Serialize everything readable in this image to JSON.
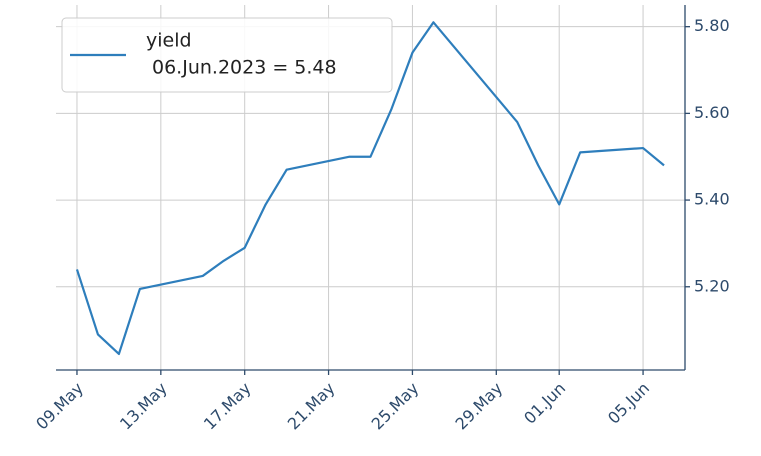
{
  "chart_data": {
    "type": "line",
    "x": [
      "2023-05-09",
      "2023-05-10",
      "2023-05-11",
      "2023-05-12",
      "2023-05-15",
      "2023-05-16",
      "2023-05-17",
      "2023-05-18",
      "2023-05-19",
      "2023-05-22",
      "2023-05-23",
      "2023-05-24",
      "2023-05-25",
      "2023-05-26",
      "2023-05-30",
      "2023-05-31",
      "2023-06-01",
      "2023-06-02",
      "2023-06-05",
      "2023-06-06"
    ],
    "series": [
      {
        "name": "yield",
        "color": "#2e7ebc",
        "values": [
          5.24,
          5.09,
          5.045,
          5.195,
          5.225,
          5.26,
          5.29,
          5.39,
          5.47,
          5.5,
          5.5,
          5.61,
          5.74,
          5.81,
          5.58,
          5.48,
          5.39,
          5.51,
          5.52,
          5.48
        ]
      }
    ],
    "annotation": "06.Jun.2023 = 5.48",
    "xlim": [
      "2023-05-08",
      "2023-06-07"
    ],
    "xticks": [
      {
        "value": "2023-05-09",
        "label": "09.May"
      },
      {
        "value": "2023-05-13",
        "label": "13.May"
      },
      {
        "value": "2023-05-17",
        "label": "17.May"
      },
      {
        "value": "2023-05-21",
        "label": "21.May"
      },
      {
        "value": "2023-05-25",
        "label": "25.May"
      },
      {
        "value": "2023-05-29",
        "label": "29.May"
      },
      {
        "value": "2023-06-01",
        "label": "01.Jun"
      },
      {
        "value": "2023-06-05",
        "label": "05.Jun"
      }
    ],
    "ylim": [
      5.008,
      5.85
    ],
    "yticks": [
      {
        "value": 5.2,
        "label": "5.20"
      },
      {
        "value": 5.4,
        "label": "5.40"
      },
      {
        "value": 5.6,
        "label": "5.60"
      },
      {
        "value": 5.8,
        "label": "5.80"
      }
    ],
    "y_axis_side": "right",
    "grid": true,
    "legend": "upper left"
  }
}
